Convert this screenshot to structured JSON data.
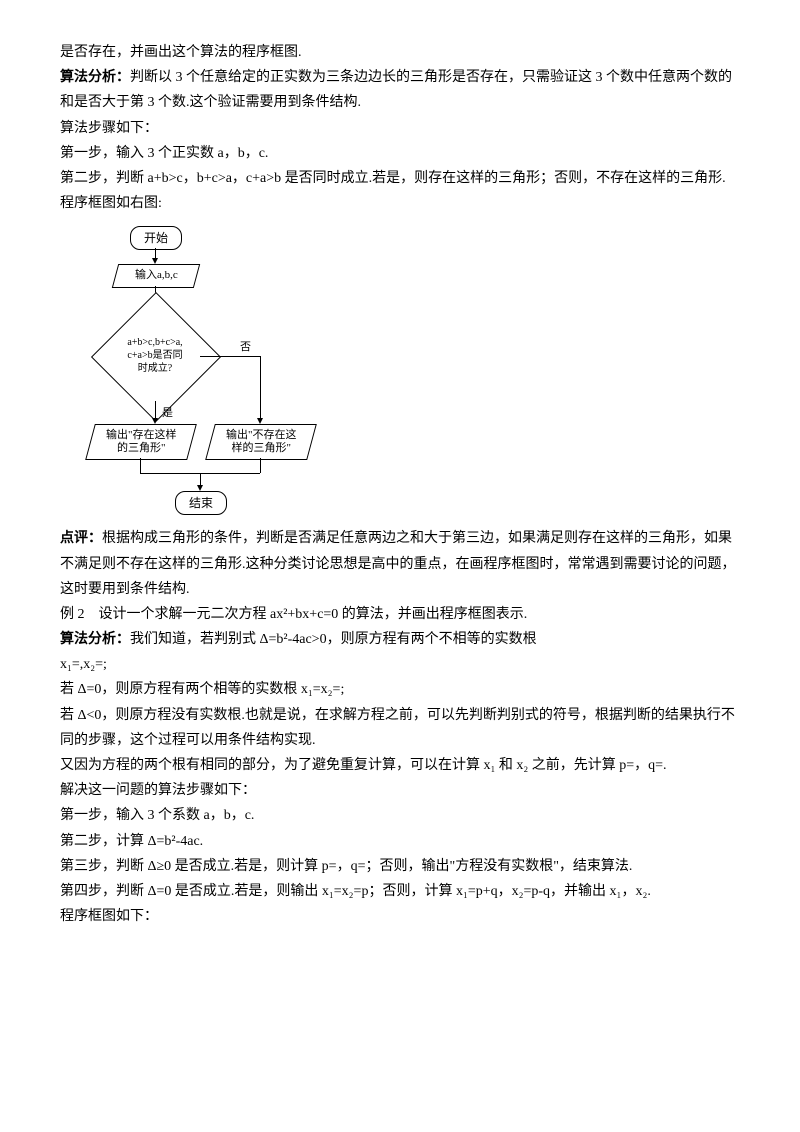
{
  "intro": "是否存在，并画出这个算法的程序框图.",
  "analysis1_label": "算法分析：",
  "analysis1": "判断以 3 个任意给定的正实数为三条边边长的三角形是否存在，只需验证这 3 个数中任意两个数的和是否大于第 3 个数.这个验证需要用到条件结构.",
  "steps_intro": "算法步骤如下：",
  "step1": "第一步，输入 3 个正实数 a，b，c.",
  "step2": "第二步，判断 a+b>c，b+c>a，c+a>b 是否同时成立.若是，则存在这样的三角形；否则，不存在这样的三角形.",
  "flowchart_intro": "程序框图如右图:",
  "flow": {
    "start": "开始",
    "input": "输入a,b,c",
    "condition": "a+b>c,b+c>a,\nc+a>b是否同\n时成立?",
    "yes": "是",
    "no": "否",
    "out_yes": "输出\"存在这样\n的三角形\"",
    "out_no": "输出\"不存在这\n样的三角形\"",
    "end": "结束"
  },
  "review_label": "点评：",
  "review": "根据构成三角形的条件，判断是否满足任意两边之和大于第三边，如果满足则存在这样的三角形，如果不满足则不存在这样的三角形.这种分类讨论思想是高中的重点，在画程序框图时，常常遇到需要讨论的问题，这时要用到条件结构.",
  "ex2": "例 2　设计一个求解一元二次方程 ax²+bx+c=0 的算法，并画出程序框图表示.",
  "analysis2_label": "算法分析：",
  "analysis2a": "我们知道，若判别式 Δ=b²-4ac>0，则原方程有两个不相等的实数根",
  "analysis2b": "x₁=,x₂=;",
  "analysis2c": "若 Δ=0，则原方程有两个相等的实数根 x₁=x₂=;",
  "analysis2d": "若 Δ<0，则原方程没有实数根.也就是说，在求解方程之前，可以先判断判别式的符号，根据判断的结果执行不同的步骤，这个过程可以用条件结构实现.",
  "analysis2e": "又因为方程的两个根有相同的部分，为了避免重复计算，可以在计算 x₁ 和 x₂ 之前，先计算 p=，q=.",
  "solve_intro": "解决这一问题的算法步骤如下：",
  "s1": "第一步，输入 3 个系数 a，b，c.",
  "s2": "第二步，计算 Δ=b²-4ac.",
  "s3": "第三步，判断 Δ≥0 是否成立.若是，则计算 p=，q=；否则，输出\"方程没有实数根\"，结束算法.",
  "s4": "第四步，判断 Δ=0 是否成立.若是，则输出 x₁=x₂=p；否则，计算 x₁=p+q，x₂=p-q，并输出 x₁，x₂.",
  "flowchart2_intro": "程序框图如下："
}
